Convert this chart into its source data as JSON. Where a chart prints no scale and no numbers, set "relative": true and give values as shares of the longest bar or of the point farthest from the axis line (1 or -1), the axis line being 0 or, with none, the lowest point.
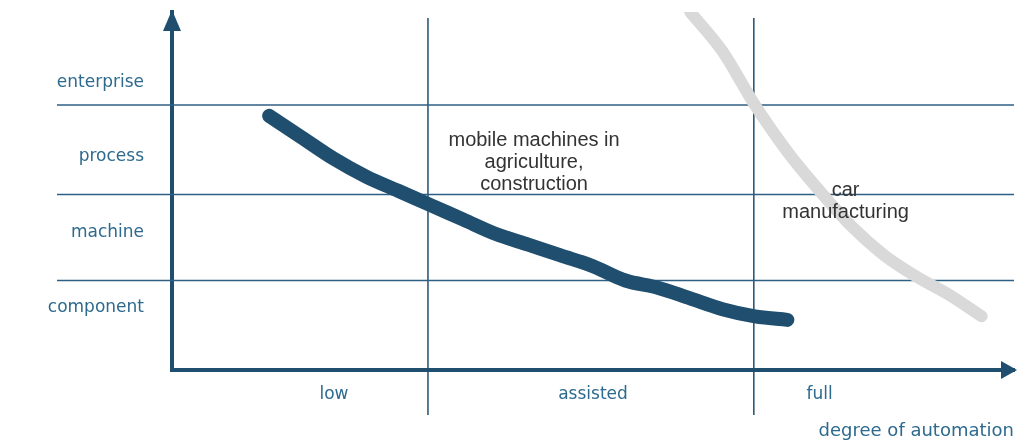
{
  "chart_data": {
    "type": "line",
    "relative": true,
    "xlabel": "degree of automation",
    "categories": [
      null,
      null,
      null,
      null,
      null,
      "low",
      null,
      null,
      null,
      null,
      null,
      null,
      null,
      "assisted",
      null,
      null,
      null,
      null,
      null,
      null,
      "full",
      null,
      null,
      null,
      null,
      null,
      null
    ],
    "marker": "none",
    "series": [
      {
        "color": "#1f4e6e",
        "values": [
          null,
          null,
          null,
          0.71,
          0.65,
          0.59,
          0.54,
          0.5,
          0.46,
          0.42,
          0.38,
          0.35,
          0.32,
          0.29,
          0.25,
          0.23,
          0.2,
          0.17,
          0.15,
          0.14,
          null,
          null,
          null,
          null,
          null,
          null,
          null
        ]
      },
      {
        "color": "#d9d9d9",
        "values": [
          null,
          null,
          null,
          null,
          null,
          null,
          null,
          null,
          null,
          null,
          null,
          null,
          null,
          null,
          null,
          null,
          1.0,
          0.89,
          0.74,
          0.61,
          0.5,
          0.4,
          0.32,
          0.26,
          0.21,
          0.15,
          null
        ]
      }
    ],
    "ref_lines": [
      {
        "axis": "y",
        "value": 0.25,
        "color": "#2f5f83"
      },
      {
        "axis": "y",
        "value": 0.49,
        "color": "#2f5f83"
      },
      {
        "axis": "y",
        "value": 0.74,
        "color": "#2f5f83"
      }
    ],
    "annotations": [
      "enterprise",
      "process",
      "machine",
      "component",
      "mobile machines in\nagriculture,\nconstruction",
      "car\nmanufacturing"
    ]
  }
}
